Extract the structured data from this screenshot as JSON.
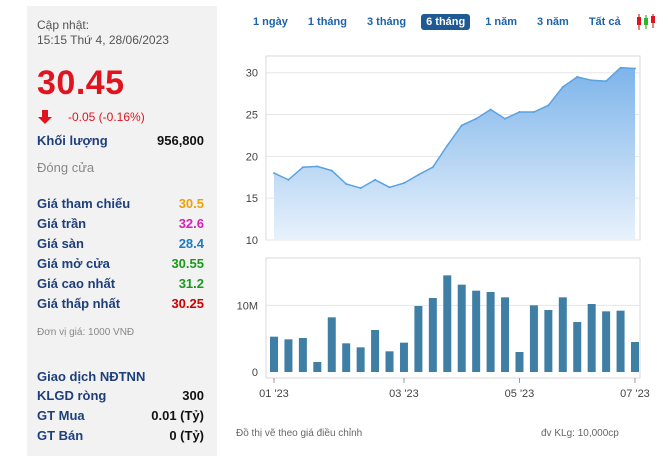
{
  "summary": {
    "updated_label": "Cập nhật:",
    "updated_time": "15:15 Thứ 4, 28/06/2023",
    "price": "30.45",
    "change": "-0.05 (-0.16%)",
    "volume_label": "Khối lượng",
    "volume_value": "956,800",
    "status": "Đóng cửa"
  },
  "price_table": [
    {
      "label": "Giá tham chiếu",
      "value": "30.5",
      "color": "#f0a000"
    },
    {
      "label": "Giá trần",
      "value": "32.6",
      "color": "#d41fb8"
    },
    {
      "label": "Giá sàn",
      "value": "28.4",
      "color": "#1e7bbf"
    },
    {
      "label": "Giá mở cửa",
      "value": "30.55",
      "color": "#1a9a1a"
    },
    {
      "label": "Giá cao nhất",
      "value": "31.2",
      "color": "#1a9a1a"
    },
    {
      "label": "Giá thấp nhất",
      "value": "30.25",
      "color": "#cc0000"
    }
  ],
  "unit_note": "Đơn vị giá: 1000 VNĐ",
  "foreign": {
    "title": "Giao dịch NĐTNN",
    "rows": [
      {
        "label": "KLGD ròng",
        "value": "300"
      },
      {
        "label": "GT Mua",
        "value": "0.01 (Tỷ)"
      },
      {
        "label": "GT Bán",
        "value": "0 (Tỷ)"
      }
    ]
  },
  "tabs": [
    "1 ngày",
    "1 tháng",
    "3 tháng",
    "6 tháng",
    "1 năm",
    "3 năm",
    "Tất cả"
  ],
  "active_tab": "6 tháng",
  "candle_icon": "candlestick-icon",
  "footer_left": "Đồ thị vẽ theo giá điều chỉnh",
  "footer_right": "đv KLg: 10,000cp",
  "colors": {
    "area": "#8fc0ee",
    "line": "#5aa2e0",
    "bar": "#3f7fa5",
    "price": "#e0141e"
  },
  "chart_data": [
    {
      "type": "area",
      "yticks": [
        10,
        15,
        20,
        25,
        30
      ],
      "ylim": [
        10,
        32
      ],
      "values": [
        18,
        17.2,
        18.7,
        18.8,
        18.3,
        16.7,
        16.2,
        17.2,
        16.3,
        16.8,
        17.8,
        18.7,
        21.3,
        23.7,
        24.5,
        25.6,
        24.5,
        25.3,
        25.3,
        26.1,
        28.3,
        29.5,
        29.1,
        29,
        30.6,
        30.5
      ]
    },
    {
      "type": "bar",
      "yticks": [
        "0",
        "10M"
      ],
      "values": [
        5.3,
        4.9,
        5.1,
        1.5,
        8.2,
        4.3,
        3.7,
        6.3,
        3.1,
        4.4,
        9.9,
        11.1,
        14.5,
        13.1,
        12.2,
        12,
        11.2,
        3.0,
        10,
        9.3,
        11.2,
        7.5,
        10.2,
        9.1,
        9.2,
        4.5
      ],
      "xlabels": [
        "01 '23",
        "03 '23",
        "05 '23",
        "07 '23"
      ]
    }
  ]
}
